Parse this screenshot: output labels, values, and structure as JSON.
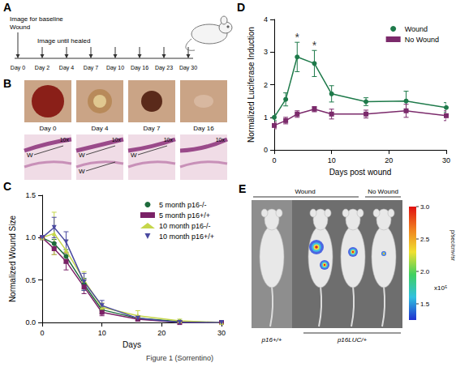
{
  "panel_a": {
    "letter": "A",
    "texts": [
      "Image for baseline",
      "Wound",
      "Image until healed"
    ],
    "timeline": [
      "Day 0",
      "Day 2",
      "Day 4",
      "Day 7",
      "Day 10",
      "Day 16",
      "Day 23",
      "Day 30"
    ]
  },
  "panel_b": {
    "letter": "B",
    "photos": [
      {
        "day": "Day 0",
        "magnification": "10x",
        "marks": [
          "W"
        ]
      },
      {
        "day": "Day 4",
        "magnification": "10x",
        "marks": [
          "W",
          "W"
        ]
      },
      {
        "day": "Day 7",
        "magnification": "10x",
        "marks": [
          "W"
        ]
      },
      {
        "day": "Day 16",
        "magnification": "10x",
        "marks": []
      }
    ]
  },
  "panel_e": {
    "letter": "E",
    "groups": [
      "Wound",
      "No Wound"
    ],
    "genotypes": [
      "p16+/+",
      "p16LUC/+"
    ],
    "colorbar": {
      "range": [
        1.25,
        3.0
      ],
      "ticks": [
        {
          "value": 3,
          "label": "3.0"
        },
        {
          "value": 2.5,
          "label": "2.5"
        },
        {
          "value": 2,
          "label": "2.0"
        },
        {
          "value": 1.5,
          "label": "1.5"
        }
      ],
      "multiplier": "x10⁵",
      "unit": "p/sec/cm²/sr"
    }
  },
  "caption": "Figure 1 (Sorrentino)",
  "chart_data": [
    {
      "panel": "C",
      "type": "line",
      "x_label": "Days",
      "y_label": "Normalized Wound Size",
      "x": [
        0,
        2,
        4,
        7,
        10,
        16,
        23,
        30
      ],
      "xlim": [
        0,
        30
      ],
      "xticks": [
        0,
        10,
        20,
        30
      ],
      "ylim": [
        0,
        1.5
      ],
      "yticks": [
        {
          "value": 0,
          "label": "0.0"
        },
        {
          "value": 0.5,
          "label": "0.5"
        },
        {
          "value": 1,
          "label": "1.0"
        },
        {
          "value": 1.5,
          "label": "1.5"
        }
      ],
      "legend": "upper right",
      "grid": false,
      "series": [
        {
          "name": "5 month p16-/-",
          "color": "#1e6b3c",
          "marker": "circle",
          "values": [
            1,
            0.93,
            0.78,
            0.45,
            0.15,
            0.05,
            0.01,
            0
          ],
          "errors": [
            0,
            0.05,
            0.08,
            0.07,
            0.04,
            0.03,
            0.01,
            0
          ]
        },
        {
          "name": "5 month p16+/+",
          "color": "#7a2166",
          "marker": "square",
          "values": [
            1,
            0.87,
            0.72,
            0.42,
            0.12,
            0.04,
            0,
            0
          ],
          "errors": [
            0,
            0.07,
            0.1,
            0.08,
            0.04,
            0.02,
            0,
            0
          ]
        },
        {
          "name": "10 month p16-/-",
          "color": "#c5d64a",
          "marker": "triangle",
          "values": [
            1,
            1.05,
            0.85,
            0.5,
            0.18,
            0.08,
            0.02,
            0
          ],
          "errors": [
            0,
            0.25,
            0.12,
            0.1,
            0.05,
            0.06,
            0.02,
            0
          ]
        },
        {
          "name": "10 month p16+/+",
          "color": "#4a4aa0",
          "marker": "triangle-down",
          "values": [
            1,
            1.12,
            0.95,
            0.48,
            0.2,
            0.05,
            0,
            0
          ],
          "errors": [
            0,
            0.12,
            0.12,
            0.1,
            0.06,
            0.03,
            0,
            0
          ]
        }
      ]
    },
    {
      "panel": "D",
      "type": "line",
      "x_label": "Days post wound",
      "y_label": "Normalized Luciferase Induction",
      "x": [
        0,
        2,
        4,
        7,
        10,
        16,
        23,
        30
      ],
      "xlim": [
        0,
        30
      ],
      "xticks": [
        0,
        10,
        20,
        30
      ],
      "ylim": [
        0,
        4
      ],
      "yticks": [
        0,
        1,
        2,
        3,
        4
      ],
      "legend": "upper right",
      "grid": false,
      "annotations": [
        {
          "x": 4,
          "y": 3.45,
          "text": "*"
        },
        {
          "x": 7,
          "y": 3.2,
          "text": "*"
        }
      ],
      "series": [
        {
          "name": "Wound",
          "color": "#1e7a4a",
          "marker": "circle",
          "values": [
            1,
            1.55,
            2.85,
            2.65,
            1.72,
            1.48,
            1.5,
            1.3
          ],
          "errors": [
            0.1,
            0.2,
            0.45,
            0.4,
            0.25,
            0.12,
            0.3,
            0.15
          ]
        },
        {
          "name": "No Wound",
          "color": "#7b2a6b",
          "marker": "square",
          "values": [
            0.75,
            0.9,
            1.1,
            1.25,
            1.1,
            1.1,
            1.2,
            1.05
          ],
          "errors": [
            0.1,
            0.1,
            0.1,
            0.08,
            0.15,
            0.12,
            0.2,
            0.15
          ]
        }
      ]
    }
  ]
}
